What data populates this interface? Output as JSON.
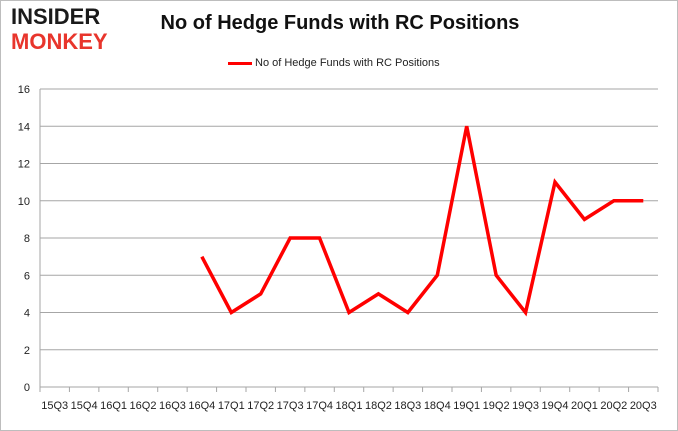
{
  "logo": {
    "line1": "INSIDER",
    "line2": "MONKEY"
  },
  "chart_data": {
    "type": "line",
    "title": "No of Hedge Funds with RC Positions",
    "xlabel": "",
    "ylabel": "",
    "legend_position": "top-center",
    "grid": true,
    "ylim": [
      0,
      16
    ],
    "yticks": [
      0,
      2,
      4,
      6,
      8,
      10,
      12,
      14,
      16
    ],
    "categories": [
      "15Q3",
      "15Q4",
      "16Q1",
      "16Q2",
      "16Q3",
      "16Q4",
      "17Q1",
      "17Q2",
      "17Q3",
      "17Q4",
      "18Q1",
      "18Q2",
      "18Q3",
      "18Q4",
      "19Q1",
      "19Q2",
      "19Q3",
      "19Q4",
      "20Q1",
      "20Q2",
      "20Q3"
    ],
    "series": [
      {
        "name": "No of Hedge Funds with RC Positions",
        "color": "#ff0000",
        "values": [
          null,
          null,
          null,
          null,
          null,
          7,
          4,
          5,
          8,
          8,
          4,
          5,
          4,
          6,
          14,
          6,
          4,
          11,
          9,
          10,
          10
        ]
      }
    ]
  }
}
